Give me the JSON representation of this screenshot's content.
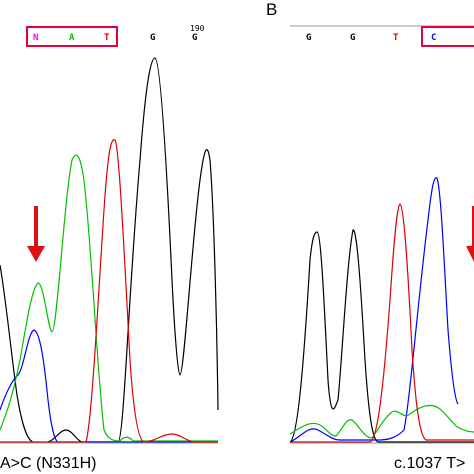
{
  "panels": {
    "a": {
      "position_number": "190",
      "bases": [
        {
          "text": "N",
          "color": "#ff00ff"
        },
        {
          "text": "A",
          "color": "#00c000"
        },
        {
          "text": "T",
          "color": "#e00000"
        },
        {
          "text": "G",
          "color": "#000000"
        },
        {
          "text": "G",
          "color": "#000000"
        }
      ],
      "mutation_label": "A>C (N331H)"
    },
    "b": {
      "letter": "B",
      "bases": [
        {
          "text": "G",
          "color": "#000000"
        },
        {
          "text": "G",
          "color": "#000000"
        },
        {
          "text": "T",
          "color": "#e00000"
        },
        {
          "text": "C",
          "color": "#0000ff"
        }
      ],
      "mutation_label": "c.1037 T>"
    }
  },
  "colors": {
    "trace_g": "#000000",
    "trace_a": "#00c000",
    "trace_t": "#e00000",
    "trace_c": "#0000ff",
    "highlight_box": "#e8003a",
    "arrow": "#dd1111",
    "axis": "#999999"
  }
}
